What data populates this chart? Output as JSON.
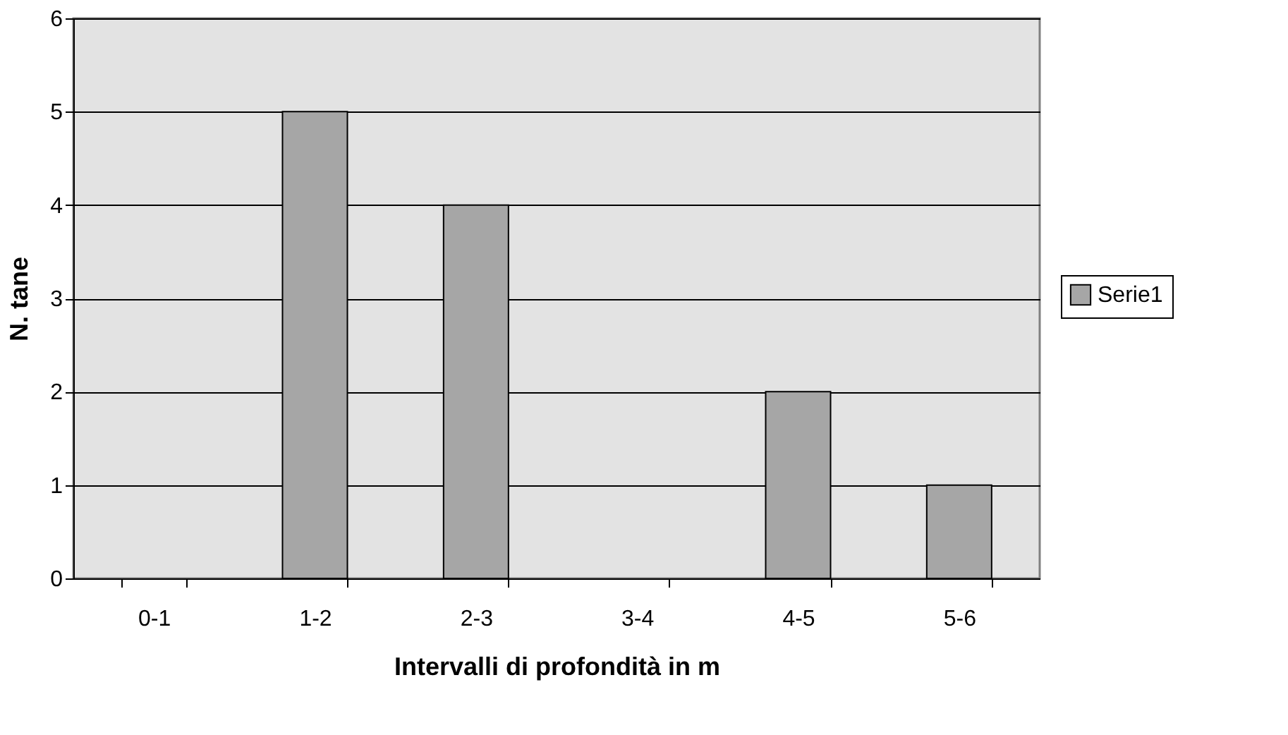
{
  "chart_data": {
    "type": "bar",
    "xlabel": "Intervalli di profondità in m",
    "ylabel": "N. tane",
    "categories": [
      "0-1",
      "1-2",
      "2-3",
      "3-4",
      "4-5",
      "5-6"
    ],
    "series": [
      {
        "name": "Serie1",
        "color": "#a6a6a6",
        "values": [
          0,
          5,
          4,
          0,
          2,
          1
        ]
      }
    ],
    "ylim": [
      0,
      6
    ],
    "yticks": [
      0,
      1,
      2,
      3,
      4,
      5,
      6
    ],
    "grid": "y",
    "legend": "right"
  }
}
